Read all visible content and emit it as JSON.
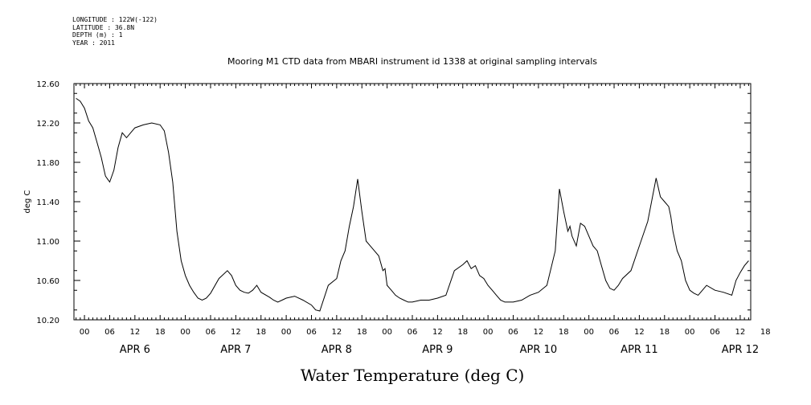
{
  "meta_lines": [
    "LONGITUDE : 122W(-122)",
    "LATITUDE : 36.8N",
    "DEPTH (m) : 1",
    "YEAR : 2011"
  ],
  "chart_data": {
    "type": "line",
    "title": "Mooring M1 CTD data from MBARI instrument id 1338 at original sampling intervals",
    "xlabel": "Water Temperature (deg C)",
    "ylabel": "deg C",
    "ylim": [
      10.2,
      12.6
    ],
    "yticks": [
      "12.60",
      "12.20",
      "11.80",
      "11.40",
      "11.00",
      "10.60",
      "10.20"
    ],
    "x_unit": "hours since Apr 6 00:00, 2011",
    "xlim": [
      -2.5,
      158.5
    ],
    "hour_tick_labels": [
      "00",
      "06",
      "12",
      "18",
      "00",
      "06",
      "12",
      "18",
      "00",
      "06",
      "12",
      "18",
      "00",
      "06",
      "12",
      "18",
      "00",
      "06",
      "12",
      "18",
      "00",
      "06",
      "12",
      "18",
      "00",
      "06",
      "12",
      "18"
    ],
    "day_labels": [
      "APR  6",
      "APR  7",
      "APR  8",
      "APR  9",
      "APR 10",
      "APR 11",
      "APR 12"
    ],
    "line_color": "#000000",
    "series": [
      {
        "x": [
          -2,
          -1,
          0,
          1,
          2,
          3,
          4,
          5,
          5.5,
          6,
          7,
          8,
          9,
          10,
          11,
          12,
          14,
          16,
          18,
          19,
          20,
          21,
          22,
          23,
          24,
          25,
          26,
          27,
          28,
          29,
          30,
          32,
          34,
          35,
          36,
          37,
          38,
          39,
          40,
          41,
          42,
          44,
          45,
          46,
          47,
          48,
          50,
          52,
          54,
          55,
          56,
          58,
          60,
          61,
          62,
          63,
          64,
          65,
          66,
          67,
          68,
          69,
          70,
          71,
          71.5,
          72,
          73,
          74,
          75,
          76,
          77,
          78,
          80,
          82,
          84,
          86,
          88,
          90,
          91,
          92,
          93,
          94,
          95,
          96,
          97,
          98,
          99,
          100,
          102,
          104,
          106,
          108,
          110,
          112,
          113,
          114,
          115,
          115.5,
          116,
          117,
          118,
          119,
          120,
          121,
          122,
          123,
          124,
          125,
          126,
          127,
          128,
          130,
          132,
          134,
          136,
          137,
          138,
          139,
          139.5,
          140,
          141,
          142,
          143,
          144,
          145,
          146,
          147,
          148,
          150,
          152,
          154,
          155,
          156,
          157,
          158
        ],
        "y": [
          12.45,
          12.42,
          12.35,
          12.22,
          12.15,
          12.0,
          11.85,
          11.66,
          11.63,
          11.6,
          11.72,
          11.95,
          12.1,
          12.05,
          12.1,
          12.15,
          12.18,
          12.2,
          12.18,
          12.12,
          11.9,
          11.6,
          11.1,
          10.8,
          10.65,
          10.55,
          10.48,
          10.42,
          10.4,
          10.42,
          10.47,
          10.62,
          10.7,
          10.65,
          10.55,
          10.5,
          10.48,
          10.47,
          10.5,
          10.55,
          10.48,
          10.43,
          10.4,
          10.38,
          10.4,
          10.42,
          10.44,
          10.4,
          10.35,
          10.3,
          10.29,
          10.55,
          10.62,
          10.8,
          10.9,
          11.15,
          11.35,
          11.63,
          11.3,
          11.0,
          10.95,
          10.9,
          10.85,
          10.7,
          10.72,
          10.55,
          10.5,
          10.45,
          10.42,
          10.4,
          10.38,
          10.38,
          10.4,
          10.4,
          10.42,
          10.45,
          10.7,
          10.76,
          10.8,
          10.72,
          10.75,
          10.65,
          10.62,
          10.55,
          10.5,
          10.45,
          10.4,
          10.38,
          10.38,
          10.4,
          10.45,
          10.48,
          10.55,
          10.9,
          11.53,
          11.3,
          11.1,
          11.15,
          11.05,
          10.95,
          11.18,
          11.15,
          11.05,
          10.95,
          10.9,
          10.75,
          10.6,
          10.52,
          10.5,
          10.55,
          10.62,
          10.7,
          10.95,
          11.2,
          11.64,
          11.45,
          11.4,
          11.35,
          11.25,
          11.1,
          10.9,
          10.8,
          10.6,
          10.5,
          10.47,
          10.45,
          10.5,
          10.55,
          10.5,
          10.48,
          10.45,
          10.6,
          10.68,
          10.75,
          10.8
        ]
      }
    ]
  }
}
